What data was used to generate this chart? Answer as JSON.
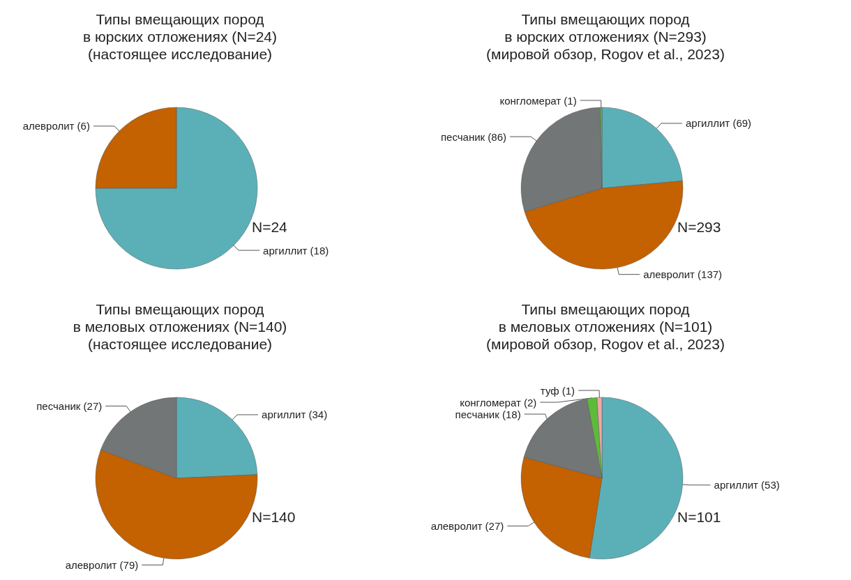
{
  "chart_data": [
    {
      "type": "pie",
      "title": "Типы вмещающих пород\nв юрских отложениях (N=24)\n(настоящее исследование)",
      "categories": [
        "аргиллит",
        "алевролит"
      ],
      "values": [
        18,
        6
      ],
      "value_labels": [
        "(18)",
        "(6)"
      ],
      "colors": [
        "#5bb0b8",
        "#c46100"
      ],
      "legend": false,
      "annotations": [
        "N=24"
      ]
    },
    {
      "type": "pie",
      "title": "Типы вмещающих пород\nв юрских отложениях (N=293)\n(мировой обзор, Rogov et al., 2023)",
      "categories": [
        "аргиллит",
        "алевролит",
        "песчаник",
        "конгломерат"
      ],
      "values": [
        69,
        137,
        86,
        1
      ],
      "value_labels": [
        "(69)",
        "(137)",
        "(86)",
        "(1)"
      ],
      "colors": [
        "#5bb0b8",
        "#c46100",
        "#737677",
        "#5dbb3a"
      ],
      "legend": false,
      "annotations": [
        "N=293"
      ]
    },
    {
      "type": "pie",
      "title": "Типы вмещающих пород\nв меловых отложениях (N=140)\n(настоящее исследование)",
      "categories": [
        "аргиллит",
        "алевролит",
        "песчаник"
      ],
      "values": [
        34,
        79,
        27
      ],
      "value_labels": [
        "(34)",
        "(79)",
        "(27)"
      ],
      "colors": [
        "#5bb0b8",
        "#c46100",
        "#737677"
      ],
      "legend": false,
      "annotations": [
        "N=140"
      ]
    },
    {
      "type": "pie",
      "title": "Типы вмещающих пород\nв меловых отложениях (N=101)\n(мировой обзор, Rogov et al., 2023)",
      "categories": [
        "аргиллит",
        "алевролит",
        "песчаник",
        "конгломерат",
        "туф"
      ],
      "values": [
        53,
        27,
        18,
        2,
        1
      ],
      "value_labels": [
        "(53)",
        "(27)",
        "(18)",
        "(2)",
        "(1)"
      ],
      "colors": [
        "#5bb0b8",
        "#c46100",
        "#737677",
        "#5dbb3a",
        "#f4a6a6"
      ],
      "legend": false,
      "annotations": [
        "N=101"
      ]
    }
  ]
}
